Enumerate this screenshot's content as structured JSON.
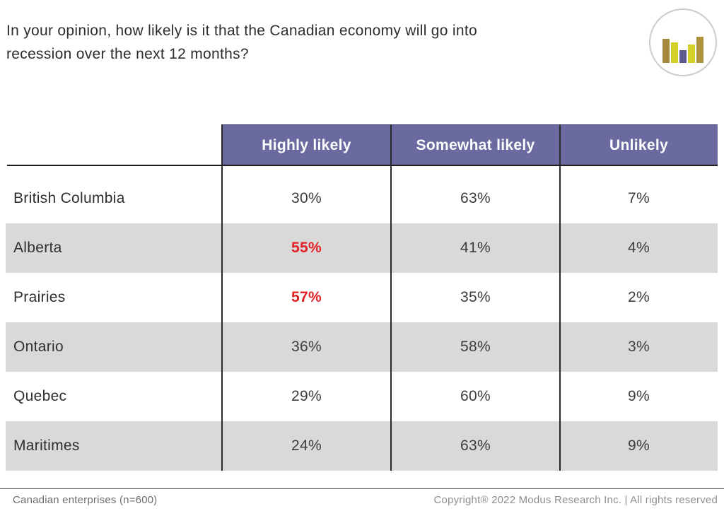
{
  "title": "In your opinion, how likely is it that the Canadian economy will go into recession over the next 12 months?",
  "logo": {
    "name": "modus-research-bar-logo",
    "circle_border_color": "#cccccc",
    "bar_colors": [
      "#a5883f",
      "#d5cf2b",
      "#5b5a91",
      "#d5cf2b",
      "#af943c"
    ]
  },
  "table": {
    "header_bg": "#6a69a0",
    "alt_row_bg": "#d9d9d9",
    "highlight_color": "#e02227",
    "columns": [
      "Highly likely",
      "Somewhat likely",
      "Unlikely"
    ],
    "rows": [
      {
        "region": "British Columbia",
        "values": [
          "30%",
          "63%",
          "7%"
        ]
      },
      {
        "region": "Alberta",
        "values": [
          "55%",
          "41%",
          "4%"
        ]
      },
      {
        "region": "Prairies",
        "values": [
          "57%",
          "35%",
          "2%"
        ]
      },
      {
        "region": "Ontario",
        "values": [
          "36%",
          "58%",
          "3%"
        ]
      },
      {
        "region": "Quebec",
        "values": [
          "29%",
          "60%",
          "9%"
        ]
      },
      {
        "region": "Maritimes",
        "values": [
          "24%",
          "63%",
          "9%"
        ]
      }
    ]
  },
  "footer": {
    "left": "Canadian enterprises (n=600)",
    "right": "Copyright® 2022 Modus Research Inc. | All rights reserved"
  },
  "chart_data": {
    "type": "table",
    "title": "In your opinion, how likely is it that the Canadian economy will go into recession over the next 12 months?",
    "columns": [
      "Highly likely",
      "Somewhat likely",
      "Unlikely"
    ],
    "categories": [
      "British Columbia",
      "Alberta",
      "Prairies",
      "Ontario",
      "Quebec",
      "Maritimes"
    ],
    "series": [
      {
        "name": "Highly likely",
        "values": [
          30,
          55,
          57,
          36,
          29,
          24
        ]
      },
      {
        "name": "Somewhat likely",
        "values": [
          63,
          41,
          35,
          58,
          60,
          63
        ]
      },
      {
        "name": "Unlikely",
        "values": [
          7,
          4,
          2,
          3,
          9,
          9
        ]
      }
    ],
    "unit": "percent",
    "highlighted_cells": [
      {
        "region": "Alberta",
        "column": "Highly likely",
        "value": 55
      },
      {
        "region": "Prairies",
        "column": "Highly likely",
        "value": 57
      }
    ],
    "sample_note": "Canadian enterprises (n=600)"
  }
}
